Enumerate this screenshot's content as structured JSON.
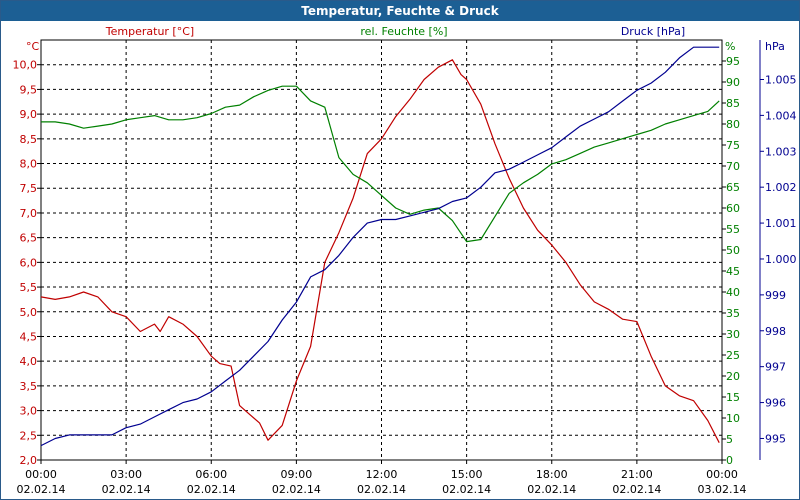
{
  "window": {
    "title": "Temperatur, Feuchte & Druck"
  },
  "colors": {
    "temperature": "#c00000",
    "humidity": "#008000",
    "pressure": "#000090",
    "grid": "#000000",
    "title_bg": "#1c5f94"
  },
  "chart_data": {
    "type": "line",
    "title": "Temperatur, Feuchte & Druck",
    "grid": true,
    "x_ticks": [
      {
        "time": "00:00",
        "date": "02.02.14"
      },
      {
        "time": "03:00",
        "date": "02.02.14"
      },
      {
        "time": "06:00",
        "date": "02.02.14"
      },
      {
        "time": "09:00",
        "date": "02.02.14"
      },
      {
        "time": "12:00",
        "date": "02.02.14"
      },
      {
        "time": "15:00",
        "date": "02.02.14"
      },
      {
        "time": "18:00",
        "date": "02.02.14"
      },
      {
        "time": "21:00",
        "date": "02.02.14"
      },
      {
        "time": "00:00",
        "date": "03.02.14"
      }
    ],
    "xlim": [
      0,
      24
    ],
    "axes": {
      "temperature": {
        "label": "Temperatur [°C]",
        "unit": "°C",
        "ylim": [
          2.0,
          10.5
        ],
        "ticks": [
          "2,0",
          "2,5",
          "3,0",
          "3,5",
          "4,0",
          "4,5",
          "5,0",
          "5,5",
          "6,0",
          "6,5",
          "7,0",
          "7,5",
          "8,0",
          "8,5",
          "9,0",
          "9,5",
          "10,0"
        ]
      },
      "humidity": {
        "label": "rel. Feuchte [%]",
        "unit": "%",
        "ylim": [
          0,
          100
        ],
        "ticks": [
          "0",
          "5",
          "10",
          "15",
          "20",
          "25",
          "30",
          "35",
          "40",
          "45",
          "50",
          "55",
          "60",
          "65",
          "70",
          "75",
          "80",
          "85",
          "90",
          "95"
        ]
      },
      "pressure": {
        "label": "Druck [hPa]",
        "unit": "hPa",
        "ylim": [
          994.4,
          1006.1
        ],
        "ticks": [
          "995",
          "996",
          "997",
          "998",
          "999",
          "1.000",
          "1.001",
          "1.002",
          "1.003",
          "1.004",
          "1.005"
        ]
      }
    },
    "series": [
      {
        "name": "Temperatur [°C]",
        "axis": "temperature",
        "x": [
          0,
          0.5,
          1,
          1.5,
          2,
          2.5,
          3,
          3.5,
          4,
          4.2,
          4.5,
          5,
          5.5,
          6,
          6.3,
          6.7,
          7,
          7.3,
          7.7,
          8,
          8.5,
          9,
          9.5,
          10,
          10.5,
          11,
          11.5,
          12,
          12.5,
          13,
          13.5,
          14,
          14.5,
          14.8,
          15,
          15.5,
          16,
          16.5,
          17,
          17.5,
          18,
          18.5,
          19,
          19.5,
          20,
          20.5,
          21,
          21.5,
          22,
          22.5,
          23,
          23.5,
          23.9
        ],
        "values": [
          5.3,
          5.25,
          5.3,
          5.4,
          5.3,
          5.0,
          4.9,
          4.6,
          4.75,
          4.6,
          4.9,
          4.75,
          4.5,
          4.1,
          3.95,
          3.9,
          3.1,
          2.95,
          2.75,
          2.4,
          2.7,
          3.6,
          4.3,
          6.0,
          6.6,
          7.3,
          8.2,
          8.5,
          8.95,
          9.3,
          9.7,
          9.95,
          10.1,
          9.8,
          9.7,
          9.2,
          8.4,
          7.7,
          7.1,
          6.65,
          6.35,
          6.0,
          5.55,
          5.2,
          5.05,
          4.85,
          4.8,
          4.1,
          3.5,
          3.3,
          3.2,
          2.8,
          2.35
        ]
      },
      {
        "name": "rel. Feuchte [%]",
        "axis": "humidity",
        "x": [
          0,
          0.5,
          1,
          1.5,
          2,
          2.5,
          3,
          3.5,
          4,
          4.5,
          5,
          5.5,
          6,
          6.5,
          7,
          7.5,
          8,
          8.5,
          9,
          9.5,
          10,
          10.5,
          11,
          11.5,
          12,
          12.5,
          13,
          13.5,
          14,
          14.5,
          15,
          15.5,
          16,
          16.5,
          17,
          17.5,
          18,
          18.5,
          19,
          19.5,
          20,
          20.5,
          21,
          21.5,
          22,
          22.5,
          23,
          23.5,
          23.9
        ],
        "values": [
          80.5,
          80.5,
          80,
          79,
          79.5,
          80,
          81,
          81.5,
          82,
          81,
          81,
          81.5,
          82.5,
          84,
          84.5,
          86.5,
          88,
          89,
          89,
          85.5,
          84,
          72,
          68,
          66,
          63,
          60,
          58.5,
          59.5,
          60,
          57,
          52,
          52.5,
          58,
          63.5,
          66,
          68,
          70.5,
          71.5,
          73,
          74.5,
          75.5,
          76.5,
          77.5,
          78.5,
          80,
          81,
          82,
          83,
          85.5
        ]
      },
      {
        "name": "Druck [hPa]",
        "axis": "pressure",
        "x": [
          0,
          0.5,
          1,
          1.5,
          2,
          2.5,
          3,
          3.5,
          4,
          4.5,
          5,
          5.5,
          6,
          6.5,
          7,
          7.5,
          8,
          8.5,
          9,
          9.5,
          10,
          10.5,
          11,
          11.5,
          12,
          12.5,
          13,
          13.5,
          14,
          14.5,
          15,
          15.5,
          16,
          16.5,
          17,
          17.5,
          18,
          18.5,
          19,
          19.5,
          20,
          20.5,
          21,
          21.5,
          22,
          22.5,
          23,
          23.5,
          23.9
        ],
        "values": [
          994.8,
          995.0,
          995.1,
          995.1,
          995.1,
          995.1,
          995.3,
          995.4,
          995.6,
          995.8,
          996.0,
          996.1,
          996.3,
          996.6,
          996.9,
          997.3,
          997.7,
          998.3,
          998.8,
          999.5,
          999.7,
          1000.1,
          1000.6,
          1001.0,
          1001.1,
          1001.1,
          1001.2,
          1001.3,
          1001.4,
          1001.6,
          1001.7,
          1002.0,
          1002.4,
          1002.5,
          1002.7,
          1002.9,
          1003.1,
          1003.4,
          1003.7,
          1003.9,
          1004.1,
          1004.4,
          1004.7,
          1004.9,
          1005.2,
          1005.6,
          1005.9,
          1005.9,
          1005.9
        ]
      }
    ]
  }
}
